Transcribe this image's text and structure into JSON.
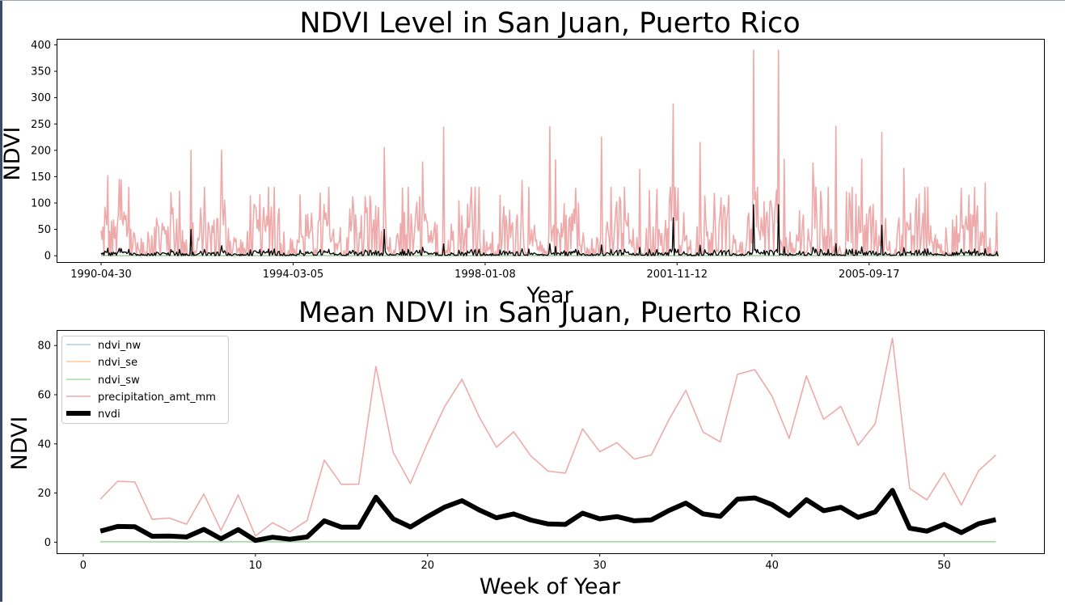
{
  "colors": {
    "ndvi_nw": "#aecde8",
    "ndvi_se": "#ffc898",
    "ndvi_sw": "#a8dca8",
    "precipitation": "#eeaaaa",
    "nvdi": "#000000"
  },
  "chart_data": [
    {
      "type": "line",
      "title": "NDVI Level in San Juan, Puerto Rico",
      "xlabel": "Year",
      "ylabel": "NDVI",
      "x_tick_labels": [
        "1990-04-30",
        "1994-03-05",
        "1998-01-08",
        "2001-11-12",
        "2005-09-17"
      ],
      "x_range": [
        "1990-04-30",
        "2008-04-22"
      ],
      "ylim": [
        -12,
        410
      ],
      "y_ticks": [
        0,
        50,
        100,
        150,
        200,
        250,
        300,
        350,
        400
      ],
      "grid": false,
      "series": [
        {
          "key": "precipitation",
          "note_values": "approximate weekly rainfall peaks read from the chart; 936 weekly points in full series",
          "peaks": [
            {
              "date": "1990-06-18",
              "value": 152
            },
            {
              "date": "1990-09-10",
              "value": 145
            },
            {
              "date": "1990-09-24",
              "value": 144
            },
            {
              "date": "1992-02-17",
              "value": 200
            },
            {
              "date": "1992-09-28",
              "value": 200
            },
            {
              "date": "1993-07-05",
              "value": 116
            },
            {
              "date": "1994-04-25",
              "value": 115
            },
            {
              "date": "1995-05-15",
              "value": 112
            },
            {
              "date": "1996-01-01",
              "value": 205
            },
            {
              "date": "1996-10-07",
              "value": 178
            },
            {
              "date": "1997-03-10",
              "value": 244
            },
            {
              "date": "1998-10-05",
              "value": 143
            },
            {
              "date": "1999-04-26",
              "value": 245
            },
            {
              "date": "1999-06-07",
              "value": 182
            },
            {
              "date": "2000-05-08",
              "value": 225
            },
            {
              "date": "2001-02-12",
              "value": 164
            },
            {
              "date": "2001-10-15",
              "value": 288
            },
            {
              "date": "2002-04-29",
              "value": 215
            },
            {
              "date": "2003-05-26",
              "value": 390
            },
            {
              "date": "2003-11-24",
              "value": 390
            },
            {
              "date": "2004-01-05",
              "value": 183
            },
            {
              "date": "2004-08-02",
              "value": 176
            },
            {
              "date": "2005-01-17",
              "value": 246
            },
            {
              "date": "2005-07-25",
              "value": 184
            },
            {
              "date": "2005-12-19",
              "value": 234
            },
            {
              "date": "2006-05-29",
              "value": 166
            },
            {
              "date": "2007-07-23",
              "value": 128
            },
            {
              "date": "2008-01-14",
              "value": 138
            }
          ]
        },
        {
          "key": "nvdi",
          "note_values": "weekly mean values approximately 0.09 of precipitation",
          "peaks": [
            {
              "date": "1992-02-17",
              "value": 50
            },
            {
              "date": "1996-01-01",
              "value": 50
            },
            {
              "date": "2001-10-15",
              "value": 72
            },
            {
              "date": "2003-05-26",
              "value": 97
            },
            {
              "date": "2003-11-24",
              "value": 97
            },
            {
              "date": "2005-12-19",
              "value": 58
            }
          ]
        },
        {
          "key": "ndvi_nw",
          "note_values": "near 0.1 to 0.2 throughout"
        },
        {
          "key": "ndvi_se",
          "note_values": "near 0.1 to 0.25 throughout"
        },
        {
          "key": "ndvi_sw",
          "note_values": "near 0.1 to 0.25 throughout"
        }
      ]
    },
    {
      "type": "line",
      "title": "Mean NDVI in San Juan, Puerto Rico",
      "xlabel": "Week of Year",
      "ylabel": "NDVI",
      "xlim": [
        -1.5,
        55.8
      ],
      "ylim": [
        -4.5,
        86
      ],
      "x_ticks": [
        0,
        10,
        20,
        30,
        40,
        50
      ],
      "y_ticks": [
        0,
        20,
        40,
        60,
        80
      ],
      "grid": false,
      "legend_position": "top-left",
      "x": [
        1,
        2,
        3,
        4,
        5,
        6,
        7,
        8,
        9,
        10,
        11,
        12,
        13,
        14,
        15,
        16,
        17,
        18,
        19,
        20,
        21,
        22,
        23,
        24,
        25,
        26,
        27,
        28,
        29,
        30,
        31,
        32,
        33,
        34,
        35,
        36,
        37,
        38,
        39,
        40,
        41,
        42,
        43,
        44,
        45,
        46,
        47,
        48,
        49,
        50,
        51,
        52,
        53
      ],
      "series": [
        {
          "key": "ndvi_nw",
          "name": "ndvi_nw",
          "values": [
            0.15,
            0.15,
            0.15,
            0.15,
            0.15,
            0.15,
            0.15,
            0.15,
            0.15,
            0.15,
            0.15,
            0.15,
            0.15,
            0.15,
            0.15,
            0.15,
            0.15,
            0.15,
            0.15,
            0.15,
            0.15,
            0.15,
            0.15,
            0.15,
            0.15,
            0.15,
            0.15,
            0.15,
            0.15,
            0.15,
            0.15,
            0.15,
            0.15,
            0.15,
            0.15,
            0.15,
            0.15,
            0.15,
            0.15,
            0.15,
            0.15,
            0.15,
            0.15,
            0.15,
            0.15,
            0.15,
            0.15,
            0.15,
            0.15,
            0.15,
            0.15,
            0.15,
            0.15
          ]
        },
        {
          "key": "ndvi_se",
          "name": "ndvi_se",
          "values": [
            0.2,
            0.2,
            0.2,
            0.2,
            0.2,
            0.2,
            0.2,
            0.2,
            0.2,
            0.2,
            0.2,
            0.2,
            0.2,
            0.2,
            0.2,
            0.2,
            0.2,
            0.2,
            0.2,
            0.2,
            0.2,
            0.2,
            0.2,
            0.2,
            0.2,
            0.2,
            0.2,
            0.2,
            0.2,
            0.2,
            0.2,
            0.2,
            0.2,
            0.2,
            0.2,
            0.2,
            0.2,
            0.2,
            0.2,
            0.2,
            0.2,
            0.2,
            0.2,
            0.2,
            0.2,
            0.2,
            0.2,
            0.2,
            0.2,
            0.2,
            0.2,
            0.2,
            0.2
          ]
        },
        {
          "key": "ndvi_sw",
          "name": "ndvi_sw",
          "values": [
            0.2,
            0.2,
            0.2,
            0.2,
            0.2,
            0.2,
            0.2,
            0.2,
            0.2,
            0.2,
            0.2,
            0.2,
            0.2,
            0.2,
            0.2,
            0.2,
            0.2,
            0.2,
            0.2,
            0.2,
            0.2,
            0.2,
            0.2,
            0.2,
            0.2,
            0.2,
            0.2,
            0.2,
            0.2,
            0.2,
            0.2,
            0.2,
            0.2,
            0.2,
            0.2,
            0.2,
            0.2,
            0.2,
            0.2,
            0.2,
            0.2,
            0.2,
            0.2,
            0.2,
            0.2,
            0.2,
            0.2,
            0.2,
            0.2,
            0.2,
            0.2,
            0.2,
            0.2
          ]
        },
        {
          "key": "precipitation",
          "name": "precipitation_amt_mm",
          "values": [
            17.5,
            24.8,
            24.5,
            9.3,
            9.8,
            7.3,
            19.6,
            4.8,
            19.2,
            2.5,
            7.9,
            4.2,
            8.8,
            33.4,
            23.5,
            23.6,
            71.5,
            36.6,
            23.9,
            40.4,
            55.3,
            66.3,
            51.0,
            38.6,
            44.9,
            35.1,
            28.9,
            28.1,
            46.1,
            36.8,
            40.5,
            33.8,
            35.5,
            49.6,
            61.8,
            44.8,
            40.8,
            68.3,
            70.2,
            59.5,
            42.2,
            67.6,
            50.0,
            55.3,
            39.4,
            48.2,
            83.0,
            21.9,
            17.2,
            28.2,
            15.1,
            29.0,
            35.5
          ]
        },
        {
          "key": "nvdi",
          "name": "nvdi",
          "values": [
            4.5,
            6.4,
            6.3,
            2.4,
            2.5,
            2.1,
            5.2,
            1.4,
            5.1,
            0.7,
            2.0,
            1.2,
            2.1,
            8.7,
            6.1,
            6.1,
            18.3,
            9.5,
            6.2,
            10.4,
            14.3,
            16.9,
            13.1,
            9.9,
            11.5,
            9.0,
            7.4,
            7.2,
            11.8,
            9.5,
            10.4,
            8.7,
            9.1,
            12.8,
            15.9,
            11.5,
            10.5,
            17.5,
            18.0,
            15.3,
            10.8,
            17.3,
            12.8,
            14.2,
            10.1,
            12.3,
            21.1,
            5.7,
            4.5,
            7.3,
            3.9,
            7.5,
            9.2
          ]
        }
      ]
    }
  ]
}
